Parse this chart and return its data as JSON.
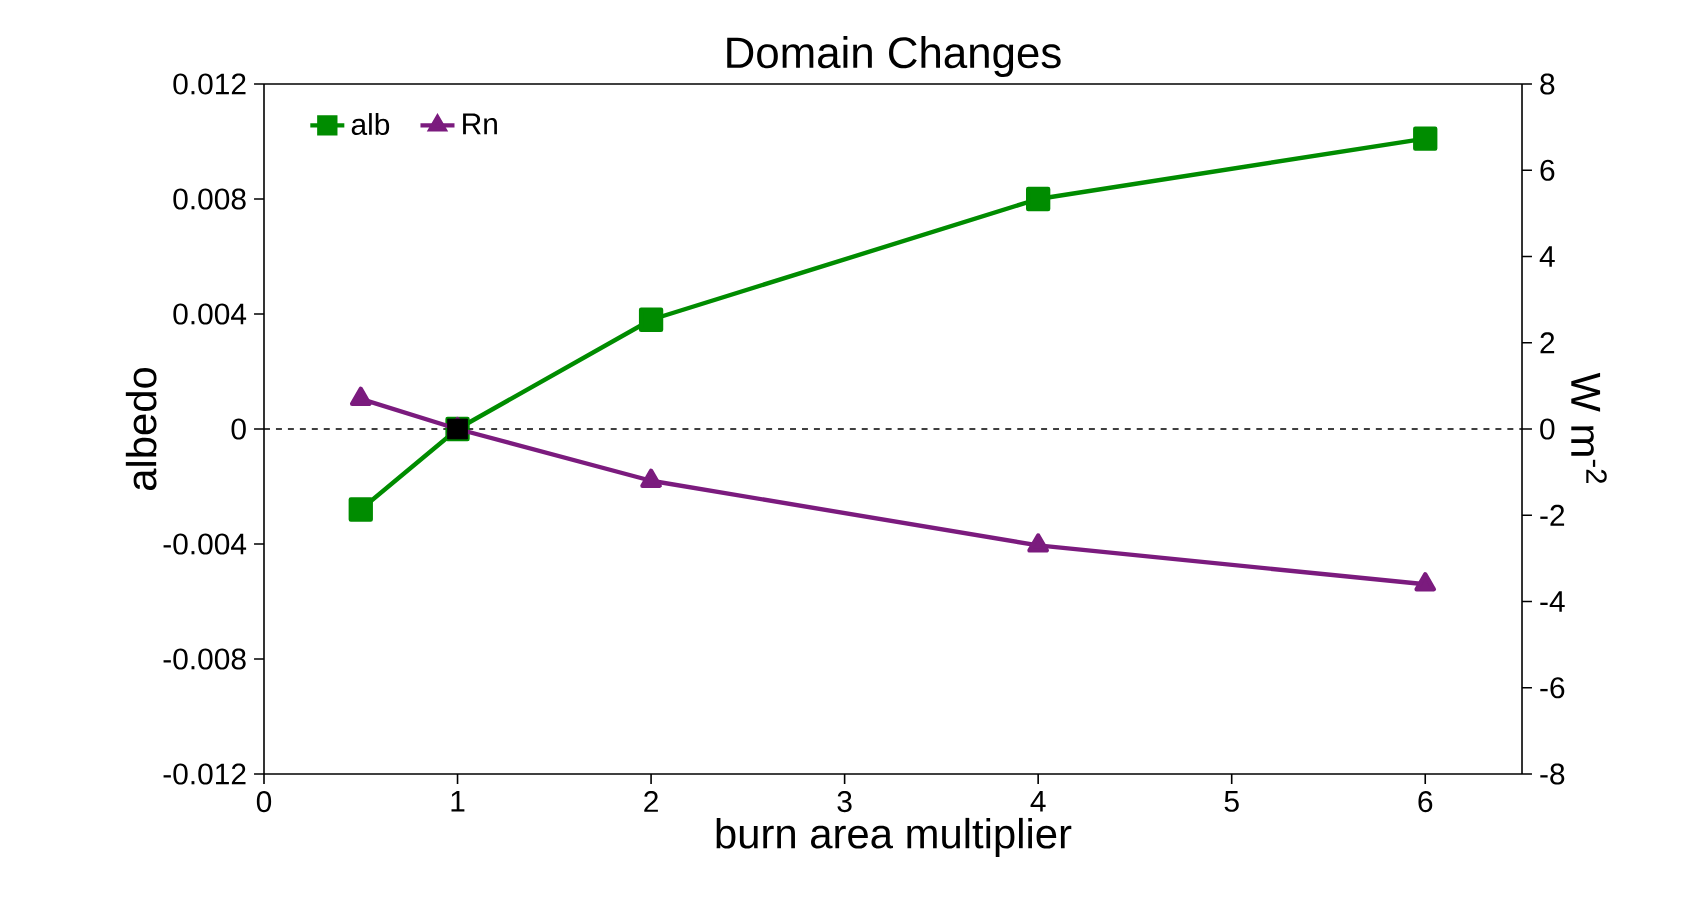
{
  "chart_data": {
    "type": "line",
    "title": "Domain Changes",
    "xlabel": "burn area multiplier",
    "ylabel": "albedo",
    "y2label": "W m$^{-2}$",
    "x": [
      0.5,
      1,
      2,
      4,
      6
    ],
    "series": [
      {
        "name": "alb",
        "color": "#008c00",
        "marker": "square",
        "values": [
          -0.0028,
          0,
          0.0038,
          0.008,
          0.0101
        ]
      },
      {
        "name": "Rn",
        "color": "#7b1b7e",
        "marker": "triangle",
        "axis": "y2",
        "values": [
          0.7,
          0,
          -1.2,
          -2.7,
          -3.6
        ]
      },
      {
        "type": "scatter",
        "color": "#000000",
        "marker": "square",
        "x": [
          1
        ],
        "values": [
          0
        ]
      }
    ],
    "xlim": [
      0,
      6.5
    ],
    "xticks": [
      0,
      1,
      2,
      3,
      4,
      5,
      6
    ],
    "ylim": [
      -0.012,
      0.012
    ],
    "yticks": [
      -0.012,
      -0.008,
      -0.004,
      0,
      0.004,
      0.008,
      0.012
    ],
    "y2lim": [
      -8,
      8
    ],
    "y2ticks": [
      -8,
      -6,
      -4,
      -2,
      0,
      2,
      4,
      6,
      8
    ],
    "ref_lines": [
      {
        "axis": "y",
        "value": 0,
        "color": "#000000",
        "line_style": "dashed"
      }
    ],
    "legend": "top left",
    "grid": false
  }
}
